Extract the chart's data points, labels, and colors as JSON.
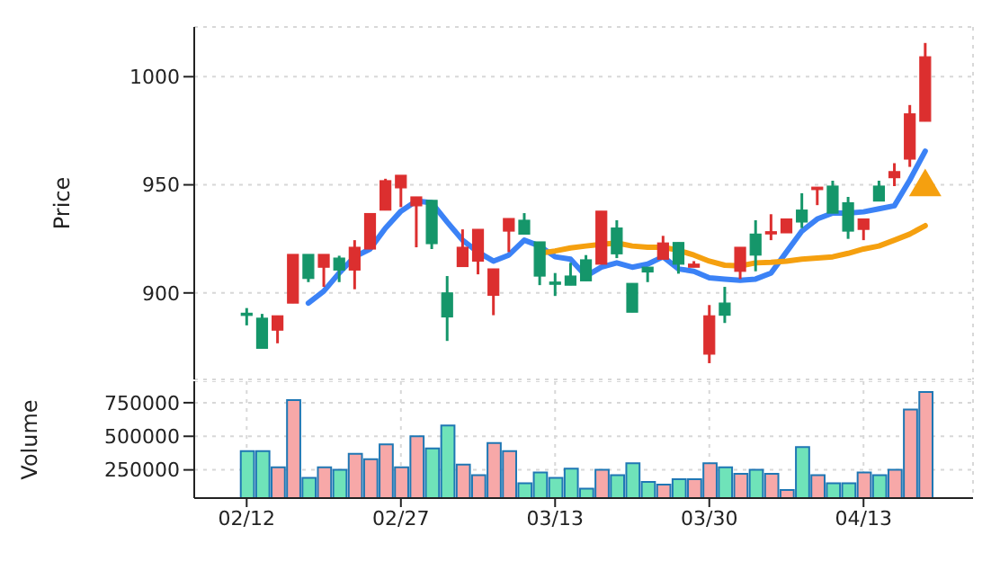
{
  "chart_data": [
    {
      "type": "candlestick",
      "ylabel": "Price",
      "categories": [
        null,
        null,
        null,
        null,
        null,
        null,
        null,
        null,
        null,
        null,
        null,
        null,
        null,
        null,
        null,
        null,
        null,
        null,
        null,
        null,
        null,
        null,
        null,
        null,
        null,
        null,
        null,
        null,
        null,
        null,
        null,
        null,
        null,
        null,
        null,
        null,
        null,
        null,
        null,
        null,
        null,
        null,
        null,
        null,
        null
      ],
      "ohlc": [
        [
          890.6,
          893,
          885,
          890.4
        ],
        [
          888.3,
          890.3,
          874.4,
          874.4
        ],
        [
          882.8,
          889.4,
          876.7,
          889.4
        ],
        [
          895.3,
          917.8,
          895.3,
          917.8
        ],
        [
          917.8,
          917.8,
          905,
          906.7
        ],
        [
          911.9,
          917.8,
          902.8,
          917.8
        ],
        [
          916.1,
          917.2,
          905,
          910.6
        ],
        [
          910.6,
          924.4,
          901.7,
          921.1
        ],
        [
          920.3,
          936.7,
          920.3,
          936.7
        ],
        [
          938.3,
          952.8,
          938.3,
          951.9
        ],
        [
          948.6,
          954.4,
          939.7,
          954.4
        ],
        [
          940.3,
          944.4,
          921.1,
          944.4
        ],
        [
          942.8,
          942.8,
          920.3,
          922.8
        ],
        [
          900,
          907.8,
          877.8,
          888.9
        ],
        [
          912.2,
          929.4,
          912.2,
          921.1
        ],
        [
          914.7,
          929.4,
          908.6,
          929.4
        ],
        [
          898.9,
          911.1,
          889.7,
          911.1
        ],
        [
          928.6,
          934.4,
          918.9,
          934.4
        ],
        [
          933.6,
          936.9,
          927.2,
          927.2
        ],
        [
          923.6,
          923.6,
          903.6,
          907.8
        ],
        [
          905,
          909.2,
          898.6,
          904.7
        ],
        [
          907.8,
          913.9,
          903.6,
          903.6
        ],
        [
          915.3,
          917.5,
          905.6,
          905.6
        ],
        [
          913.3,
          937.8,
          913.3,
          937.8
        ],
        [
          930,
          933.6,
          916.1,
          918.1
        ],
        [
          904.4,
          904.4,
          891.1,
          891.1
        ],
        [
          911.9,
          911.9,
          905,
          909.7
        ],
        [
          915.6,
          926.4,
          915.6,
          923.1
        ],
        [
          923.3,
          923.3,
          908.9,
          913.3
        ],
        [
          911.9,
          914.7,
          911.9,
          913.3
        ],
        [
          871.7,
          894.4,
          867.5,
          889.4
        ],
        [
          895.3,
          902.8,
          886.1,
          889.7
        ],
        [
          910,
          921.1,
          906.4,
          921.1
        ],
        [
          927.2,
          933.6,
          910,
          917.5
        ],
        [
          927.8,
          936.4,
          924.4,
          928.3
        ],
        [
          927.8,
          934.2,
          927.8,
          934.2
        ],
        [
          938.3,
          946.1,
          930,
          932.8
        ],
        [
          947.8,
          948.9,
          940.6,
          948.9
        ],
        [
          949.4,
          951.9,
          936.9,
          936.9
        ],
        [
          941.7,
          944.4,
          925,
          928.6
        ],
        [
          929.4,
          934.2,
          924.4,
          934.2
        ],
        [
          949.4,
          951.9,
          942.5,
          942.5
        ],
        [
          953.3,
          960,
          949.4,
          956.1
        ],
        [
          961.9,
          986.9,
          958.3,
          982.8
        ],
        [
          979.4,
          1015.6,
          979.4,
          1009.2
        ]
      ],
      "colors": [
        "#15966a",
        "#15966a",
        "#dc2f2f",
        "#dc2f2f",
        "#15966a",
        "#dc2f2f",
        "#15966a",
        "#dc2f2f",
        "#dc2f2f",
        "#dc2f2f",
        "#dc2f2f",
        "#dc2f2f",
        "#15966a",
        "#15966a",
        "#dc2f2f",
        "#dc2f2f",
        "#dc2f2f",
        "#dc2f2f",
        "#15966a",
        "#15966a",
        "#15966a",
        "#15966a",
        "#15966a",
        "#dc2f2f",
        "#15966a",
        "#15966a",
        "#15966a",
        "#dc2f2f",
        "#15966a",
        "#dc2f2f",
        "#dc2f2f",
        "#15966a",
        "#dc2f2f",
        "#15966a",
        "#dc2f2f",
        "#dc2f2f",
        "#15966a",
        "#dc2f2f",
        "#15966a",
        "#15966a",
        "#dc2f2f",
        "#15966a",
        "#dc2f2f",
        "#dc2f2f",
        "#dc2f2f"
      ],
      "series": [
        {
          "type": "line",
          "color": "#3b82f6",
          "values": [
            null,
            null,
            null,
            null,
            895.3,
            900.8,
            909.2,
            916.7,
            920.3,
            930,
            937.8,
            942.5,
            941.7,
            932.8,
            924.4,
            918.9,
            914.7,
            917.5,
            924.4,
            921.7,
            916.7,
            915.6,
            907.8,
            911.9,
            913.9,
            911.9,
            913.3,
            916.7,
            911.1,
            910,
            907,
            906.4,
            905.8,
            906.4,
            909.2,
            918.9,
            928.6,
            934.2,
            936.9,
            936.9,
            937.5,
            938.9,
            940.3,
            952.2,
            965.6
          ]
        },
        {
          "type": "line",
          "color": "#f5a00f",
          "values": [
            null,
            null,
            null,
            null,
            null,
            null,
            null,
            null,
            null,
            null,
            null,
            null,
            null,
            null,
            null,
            null,
            null,
            null,
            null,
            918.3,
            919.4,
            920.8,
            921.7,
            922.5,
            923.1,
            921.7,
            921.1,
            921.1,
            919.7,
            917.5,
            914.7,
            912.8,
            912.5,
            913.9,
            914.2,
            914.7,
            915.6,
            916.1,
            916.7,
            918.3,
            920.3,
            921.7,
            924.4,
            927.2,
            931.1
          ]
        },
        {
          "type": "scatter",
          "marker": "triangle",
          "color": "#f5a00f",
          "values": [
            null,
            null,
            null,
            null,
            null,
            null,
            null,
            null,
            null,
            null,
            null,
            null,
            null,
            null,
            null,
            null,
            null,
            null,
            null,
            null,
            null,
            null,
            null,
            null,
            null,
            null,
            null,
            null,
            null,
            null,
            null,
            null,
            null,
            null,
            null,
            null,
            null,
            null,
            null,
            null,
            null,
            null,
            null,
            null,
            950
          ]
        }
      ],
      "ylim": [
        860,
        1023
      ],
      "yticks": [
        900,
        950,
        1000
      ],
      "grid": true,
      "tick_labels": "y"
    },
    {
      "type": "bar",
      "ylabel": "Volume",
      "categories": [
        "02/12",
        null,
        null,
        null,
        null,
        null,
        null,
        null,
        null,
        null,
        "02/27",
        null,
        null,
        null,
        null,
        null,
        null,
        null,
        null,
        null,
        "03/13",
        null,
        null,
        null,
        null,
        null,
        null,
        null,
        null,
        null,
        "03/30",
        null,
        null,
        null,
        null,
        null,
        null,
        null,
        null,
        null,
        "04/13",
        null,
        null,
        null,
        null
      ],
      "values": [
        390000,
        390000,
        270000,
        770000,
        190000,
        270000,
        250000,
        370000,
        330000,
        440000,
        270000,
        500000,
        410000,
        580000,
        290000,
        210000,
        450000,
        390000,
        150000,
        230000,
        190000,
        260000,
        110000,
        250000,
        210000,
        300000,
        160000,
        140000,
        180000,
        180000,
        300000,
        270000,
        220000,
        250000,
        220000,
        100000,
        420000,
        210000,
        150000,
        150000,
        230000,
        210000,
        250000,
        700000,
        830000
      ],
      "colors": [
        "#6fe3b9",
        "#6fe3b9",
        "#f7a8a8",
        "#f7a8a8",
        "#6fe3b9",
        "#f7a8a8",
        "#6fe3b9",
        "#f7a8a8",
        "#f7a8a8",
        "#f7a8a8",
        "#f7a8a8",
        "#f7a8a8",
        "#6fe3b9",
        "#6fe3b9",
        "#f7a8a8",
        "#f7a8a8",
        "#f7a8a8",
        "#f7a8a8",
        "#6fe3b9",
        "#6fe3b9",
        "#6fe3b9",
        "#6fe3b9",
        "#6fe3b9",
        "#f7a8a8",
        "#6fe3b9",
        "#6fe3b9",
        "#6fe3b9",
        "#f7a8a8",
        "#6fe3b9",
        "#f7a8a8",
        "#f7a8a8",
        "#6fe3b9",
        "#f7a8a8",
        "#6fe3b9",
        "#f7a8a8",
        "#f7a8a8",
        "#6fe3b9",
        "#f7a8a8",
        "#6fe3b9",
        "#6fe3b9",
        "#f7a8a8",
        "#6fe3b9",
        "#f7a8a8",
        "#f7a8a8",
        "#f7a8a8"
      ],
      "ylim": [
        40000,
        910000
      ],
      "yticks": [
        250000,
        500000,
        750000
      ],
      "grid": true
    }
  ]
}
